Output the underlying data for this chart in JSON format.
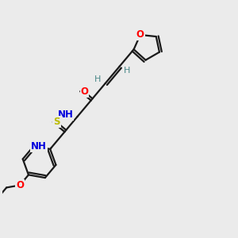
{
  "background_color": "#ebebeb",
  "bond_color": "#1a1a1a",
  "atom_colors": {
    "O": "#ff0000",
    "N": "#0000dd",
    "S": "#bbbb00",
    "C": "#1a1a1a",
    "H": "#4a8888"
  },
  "figsize": [
    3.0,
    3.0
  ],
  "dpi": 100
}
